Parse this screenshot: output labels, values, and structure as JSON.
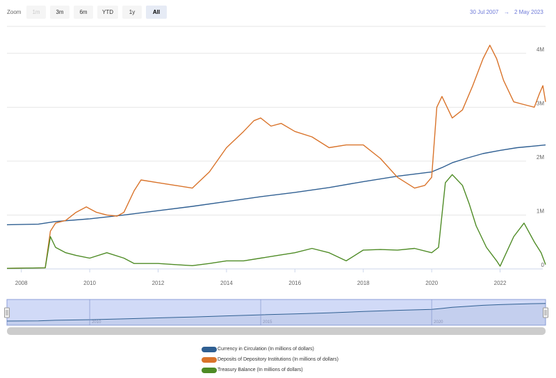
{
  "toolbar": {
    "zoom_label": "Zoom",
    "buttons": [
      "1m",
      "3m",
      "6m",
      "YTD",
      "1y",
      "All"
    ],
    "active": "All",
    "disabled": [
      "1m"
    ],
    "range_from": "30 Jul 2007",
    "range_arrow": "→",
    "range_to": "2 May 2023"
  },
  "chart_data": {
    "type": "line",
    "x_range": [
      2007.58,
      2023.33
    ],
    "ylim": [
      0,
      4500000
    ],
    "x_ticks": [
      "2008",
      "2010",
      "2012",
      "2014",
      "2016",
      "2018",
      "2020",
      "2022"
    ],
    "y_ticks": [
      "0",
      "1M",
      "2M",
      "3M",
      "4M"
    ],
    "grid": "horizontal",
    "legend_position": "bottom-center",
    "navigator_ticks": [
      "2010",
      "2015",
      "2020"
    ],
    "series": [
      {
        "name": "Currency in Circulation (In millions of dollars)",
        "color": "#2f5f92",
        "x": [
          2007.58,
          2008.5,
          2009.0,
          2010.0,
          2011.0,
          2012.0,
          2013.0,
          2014.0,
          2015.0,
          2016.0,
          2017.0,
          2018.0,
          2019.0,
          2020.0,
          2020.3,
          2020.6,
          2021.0,
          2021.5,
          2022.0,
          2022.5,
          2023.0,
          2023.33
        ],
        "y": [
          820000,
          830000,
          880000,
          930000,
          1000000,
          1080000,
          1160000,
          1250000,
          1340000,
          1420000,
          1510000,
          1620000,
          1720000,
          1800000,
          1880000,
          1970000,
          2050000,
          2140000,
          2200000,
          2250000,
          2280000,
          2300000
        ]
      },
      {
        "name": "Deposits of Depository Institutions (In millions of dollars)",
        "color": "#d9732a",
        "x": [
          2007.58,
          2008.7,
          2008.85,
          2009.0,
          2009.3,
          2009.6,
          2009.9,
          2010.2,
          2010.5,
          2010.8,
          2011.0,
          2011.3,
          2011.5,
          2012.0,
          2012.5,
          2013.0,
          2013.5,
          2014.0,
          2014.5,
          2014.8,
          2015.0,
          2015.3,
          2015.6,
          2016.0,
          2016.5,
          2017.0,
          2017.5,
          2018.0,
          2018.5,
          2019.0,
          2019.5,
          2019.8,
          2020.0,
          2020.15,
          2020.3,
          2020.6,
          2020.9,
          2021.2,
          2021.5,
          2021.7,
          2021.9,
          2022.1,
          2022.4,
          2022.7,
          2023.0,
          2023.15,
          2023.25,
          2023.33
        ],
        "y": [
          10000,
          20000,
          700000,
          850000,
          900000,
          1050000,
          1150000,
          1050000,
          1000000,
          980000,
          1050000,
          1450000,
          1650000,
          1600000,
          1550000,
          1500000,
          1800000,
          2250000,
          2550000,
          2750000,
          2800000,
          2650000,
          2700000,
          2550000,
          2450000,
          2250000,
          2300000,
          2300000,
          2050000,
          1700000,
          1500000,
          1550000,
          1700000,
          3000000,
          3200000,
          2800000,
          2950000,
          3400000,
          3900000,
          4150000,
          3900000,
          3500000,
          3100000,
          3050000,
          3000000,
          3250000,
          3400000,
          3100000
        ]
      },
      {
        "name": "Treasury Balance (In millions of dollars)",
        "color": "#4e8b25",
        "x": [
          2007.58,
          2008.7,
          2008.85,
          2009.0,
          2009.3,
          2009.6,
          2010.0,
          2010.5,
          2011.0,
          2011.3,
          2012.0,
          2012.5,
          2013.0,
          2013.5,
          2014.0,
          2014.5,
          2015.0,
          2015.5,
          2016.0,
          2016.5,
          2017.0,
          2017.5,
          2018.0,
          2018.5,
          2019.0,
          2019.5,
          2020.0,
          2020.2,
          2020.4,
          2020.6,
          2020.9,
          2021.1,
          2021.3,
          2021.6,
          2021.9,
          2022.0,
          2022.4,
          2022.7,
          2023.0,
          2023.2,
          2023.33
        ],
        "y": [
          10000,
          20000,
          600000,
          400000,
          300000,
          250000,
          200000,
          300000,
          200000,
          100000,
          100000,
          80000,
          60000,
          100000,
          150000,
          150000,
          200000,
          250000,
          300000,
          380000,
          300000,
          150000,
          350000,
          360000,
          350000,
          380000,
          300000,
          400000,
          1600000,
          1750000,
          1550000,
          1200000,
          800000,
          400000,
          150000,
          50000,
          600000,
          850000,
          500000,
          300000,
          80000
        ]
      }
    ]
  }
}
